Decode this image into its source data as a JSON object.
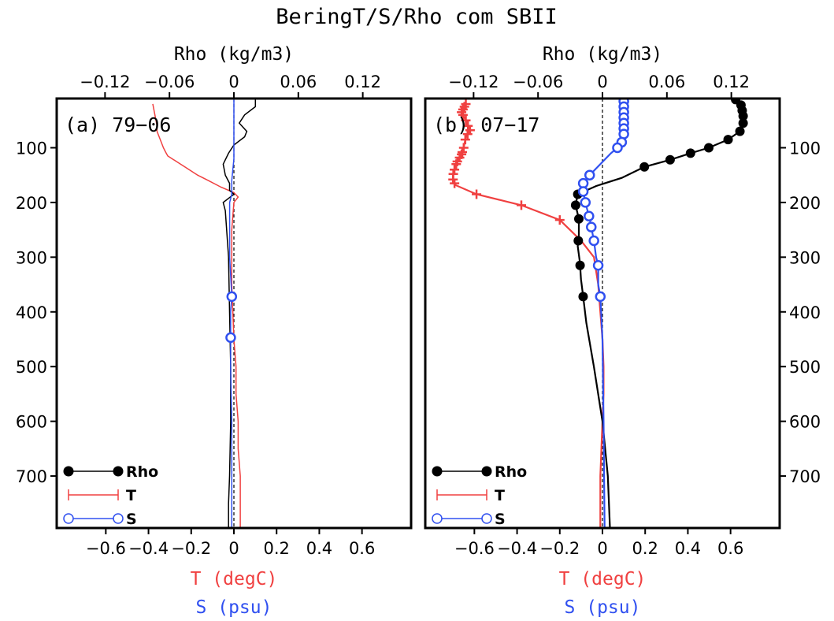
{
  "chart_data": {
    "title": "BeringT/S/Rho com SBII",
    "type": "line",
    "shared": {
      "top_axis_label": "Rho (kg/m3)",
      "top_range": [
        -0.165,
        0.165
      ],
      "top_ticks": [
        -0.12,
        -0.06,
        0,
        0.06,
        0.12
      ],
      "top_tick_labels": [
        "−0.12",
        "−0.06",
        "0",
        "0.06",
        "0.12"
      ],
      "bottom_range": [
        -0.83,
        0.83
      ],
      "bottom_ticks": [
        -0.6,
        -0.4,
        -0.2,
        0,
        0.2,
        0.4,
        0.6
      ],
      "bottom_tick_labels": [
        "−0.6",
        "−0.4",
        "−0.2",
        "0",
        "0.2",
        "0.4",
        "0.6"
      ],
      "xlabel_T": "T (degC)",
      "xlabel_S": "S (psu)",
      "depth_range": [
        10,
        795
      ],
      "depth_ticks": [
        100,
        200,
        300,
        400,
        500,
        600,
        700
      ],
      "depth_tick_labels": [
        "100",
        "200",
        "300",
        "400",
        "500",
        "600",
        "700"
      ],
      "legend": [
        {
          "label": "Rho",
          "color": "#000000",
          "marker": "dot"
        },
        {
          "label": "T",
          "color": "#f04040",
          "marker": "plus"
        },
        {
          "label": "S",
          "color": "#3050f0",
          "marker": "circle"
        }
      ],
      "legend_position": "bottom-left",
      "colors": {
        "rho": "#000000",
        "t": "#f04040",
        "s": "#3050f0"
      }
    },
    "panels": [
      {
        "label": "(a) 79−06",
        "series": [
          {
            "name": "T",
            "axis": "bottom",
            "x": [
              -0.38,
              -0.37,
              -0.36,
              -0.36,
              -0.35,
              -0.34,
              -0.33,
              -0.32,
              -0.31,
              -0.29,
              -0.27,
              -0.25,
              -0.23,
              -0.21,
              -0.17,
              -0.12,
              -0.06,
              0.0,
              0.02,
              0.0,
              -0.01,
              -0.01,
              0.0,
              0.01,
              0.01,
              0.02,
              0.02,
              0.03,
              0.03,
              0.03
            ],
            "depth": [
              20,
              40,
              60,
              70,
              80,
              90,
              100,
              108,
              115,
              120,
              125,
              130,
              135,
              140,
              150,
              160,
              172,
              182,
              190,
              200,
              250,
              350,
              450,
              500,
              550,
              600,
              650,
              700,
              750,
              795
            ]
          },
          {
            "name": "Rho",
            "axis": "top",
            "x": [
              0.02,
              0.02,
              0.01,
              0.005,
              0.012,
              0.01,
              0.0,
              -0.005,
              -0.01,
              -0.008,
              -0.004,
              -0.004,
              0.0,
              -0.01,
              -0.008,
              -0.005,
              -0.004,
              -0.003,
              -0.003,
              -0.004,
              -0.005,
              -0.005
            ],
            "depth": [
              10,
              25,
              40,
              55,
              70,
              80,
              95,
              110,
              130,
              150,
              165,
              178,
              185,
              200,
              215,
              300,
              400,
              500,
              600,
              700,
              750,
              795
            ]
          },
          {
            "name": "S",
            "axis": "bottom",
            "x": [
              0.0,
              0.0,
              0.0,
              -0.01,
              -0.01,
              -0.02,
              -0.02,
              -0.02,
              -0.01,
              -0.015,
              -0.015,
              -0.015,
              -0.01,
              -0.01,
              -0.01
            ],
            "depth": [
              10,
              60,
              120,
              160,
              185,
              200,
              220,
              300,
              372,
              400,
              447,
              500,
              600,
              700,
              795
            ],
            "markers_at": [
              372,
              447
            ]
          }
        ]
      },
      {
        "label": "(b) 07−17",
        "series": [
          {
            "name": "T",
            "axis": "bottom",
            "x": [
              -0.64,
              -0.66,
              -0.64,
              -0.63,
              -0.62,
              -0.64,
              -0.65,
              -0.66,
              -0.68,
              -0.69,
              -0.7,
              -0.7,
              -0.69,
              -0.59,
              -0.38,
              -0.2,
              -0.1,
              -0.04,
              -0.02,
              -0.01,
              0.0,
              0.005,
              0.005,
              0.0,
              -0.01,
              -0.01
            ],
            "depth": [
              20,
              35,
              50,
              60,
              68,
              80,
              100,
              112,
              125,
              135,
              150,
              158,
              168,
              185,
              205,
              232,
              270,
              300,
              350,
              400,
              450,
              500,
              550,
              600,
              700,
              795
            ],
            "marker_depths": [
              20,
              25,
              30,
              35,
              40,
              50,
              60,
              68,
              75,
              85,
              100,
              108,
              112,
              118,
              125,
              130,
              140,
              148,
              158,
              165,
              185,
              205,
              232
            ]
          },
          {
            "name": "Rho",
            "axis": "top",
            "x": [
              0.124,
              0.129,
              0.131,
              0.131,
              0.128,
              0.117,
              0.099,
              0.082,
              0.063,
              0.039,
              0.018,
              -0.006,
              -0.023,
              -0.025,
              -0.022,
              -0.022,
              -0.023,
              -0.021,
              -0.02,
              -0.018,
              -0.015,
              -0.008,
              0.0,
              0.005,
              0.007
            ],
            "depth": [
              12,
              22,
              40,
              55,
              70,
              85,
              100,
              110,
              122,
              135,
              155,
              170,
              185,
              205,
              230,
              260,
              280,
              310,
              340,
              372,
              420,
              500,
              600,
              700,
              795
            ],
            "markers_at": [
              12,
              22,
              32,
              42,
              55,
              70,
              85,
              100,
              110,
              122,
              135,
              185,
              205,
              230,
              270,
              315,
              372
            ]
          },
          {
            "name": "S",
            "axis": "bottom",
            "x": [
              0.1,
              0.1,
              0.1,
              0.1,
              0.1,
              0.09,
              0.07,
              0.04,
              -0.06,
              -0.09,
              -0.09,
              -0.08,
              -0.06,
              -0.04,
              -0.03,
              -0.02,
              -0.02,
              -0.01,
              0.0,
              0.005,
              0.01
            ],
            "depth": [
              10,
              20,
              40,
              60,
              75,
              90,
              100,
              110,
              150,
              165,
              180,
              200,
              230,
              270,
              300,
              315,
              350,
              372,
              450,
              600,
              795
            ],
            "markers_at": [
              15,
              25,
              35,
              45,
              55,
              65,
              75,
              90,
              100,
              150,
              165,
              180,
              200,
              225,
              245,
              270,
              315,
              372
            ]
          }
        ]
      }
    ]
  }
}
